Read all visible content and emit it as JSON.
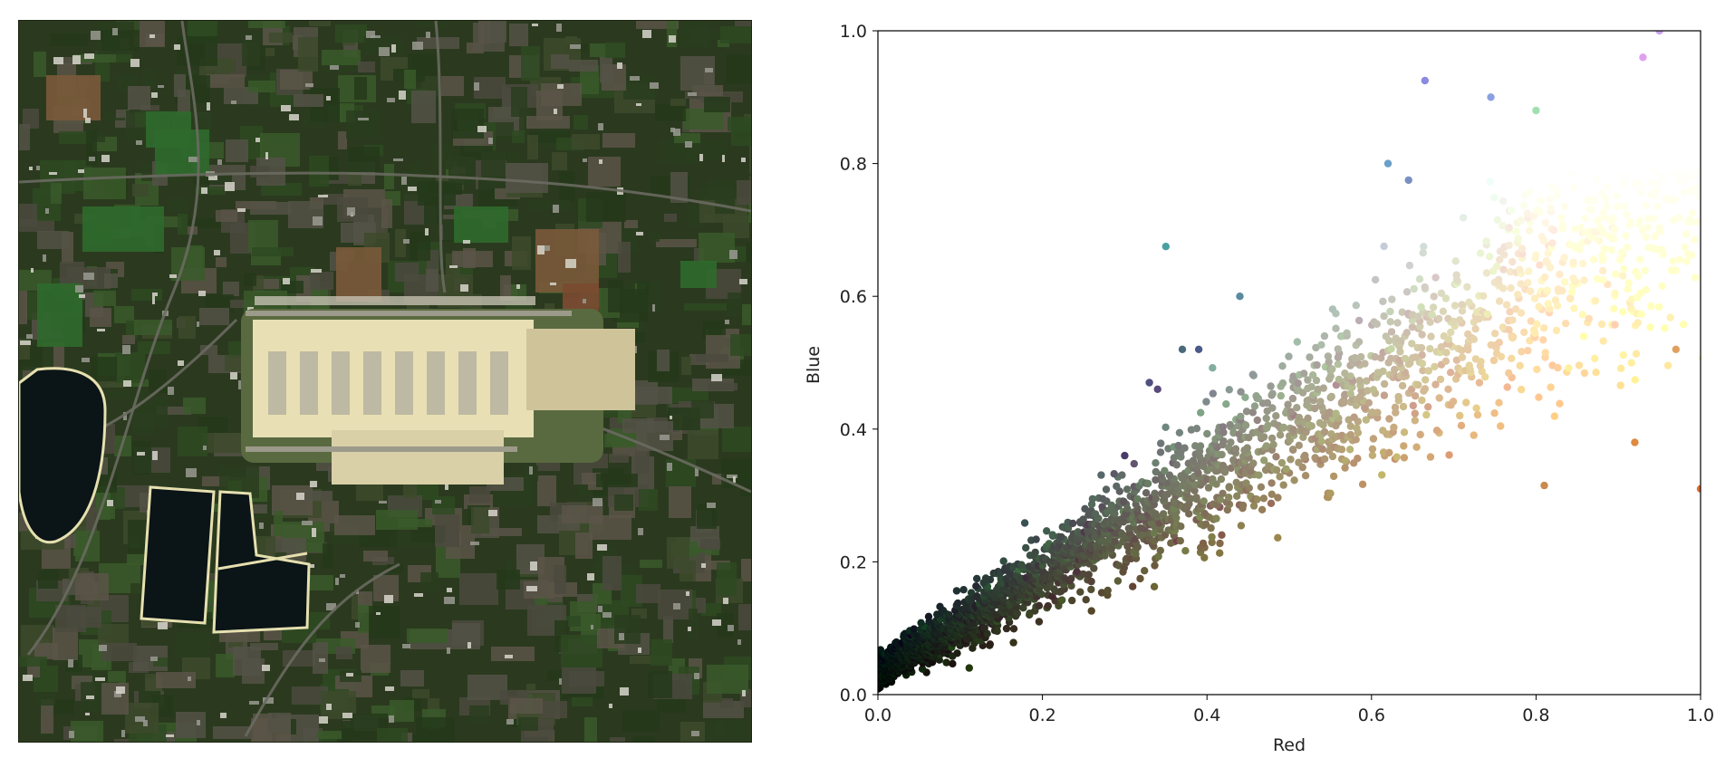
{
  "satellite_image": {
    "description_icon": "satellite-photo-airport",
    "colors": {
      "background": "#2b3a1f",
      "urban": "#4a4a40",
      "field_green": "#2f6a2c",
      "field_brown": "#7a5a3a",
      "runway_area": "#e8dfb4",
      "terminal": "#d9d0a8",
      "reservoir": "#0b1416",
      "reservoir_edge": "#e6e0b0"
    }
  },
  "chart_data": {
    "type": "scatter",
    "xlabel": "Red",
    "ylabel": "Blue",
    "xlim": [
      0.0,
      1.0
    ],
    "ylim": [
      0.0,
      1.0
    ],
    "x_ticks": [
      "0.0",
      "0.2",
      "0.4",
      "0.6",
      "0.8",
      "1.0"
    ],
    "y_ticks": [
      "0.0",
      "0.2",
      "0.4",
      "0.6",
      "0.8",
      "1.0"
    ],
    "grid": false,
    "marker_color_rule": "each point colored by its RGB pixel value",
    "outliers": [
      {
        "x": 0.35,
        "y": 0.675,
        "color": "#4aa0a0"
      },
      {
        "x": 0.44,
        "y": 0.6,
        "color": "#5a8aa0"
      },
      {
        "x": 0.37,
        "y": 0.52,
        "color": "#4a6a7a"
      },
      {
        "x": 0.39,
        "y": 0.52,
        "color": "#4a5a8a"
      },
      {
        "x": 0.33,
        "y": 0.47,
        "color": "#505080"
      },
      {
        "x": 0.34,
        "y": 0.46,
        "color": "#5a4a7a"
      },
      {
        "x": 0.3,
        "y": 0.36,
        "color": "#4a3a6a"
      },
      {
        "x": 0.62,
        "y": 0.8,
        "color": "#6aa0c8"
      },
      {
        "x": 0.645,
        "y": 0.775,
        "color": "#7a90c0"
      },
      {
        "x": 0.665,
        "y": 0.925,
        "color": "#8a8ae0"
      },
      {
        "x": 0.745,
        "y": 0.9,
        "color": "#8aa0e0"
      },
      {
        "x": 0.8,
        "y": 0.88,
        "color": "#a0e0b0"
      },
      {
        "x": 0.95,
        "y": 1.0,
        "color": "#c8a0f0"
      },
      {
        "x": 0.93,
        "y": 0.96,
        "color": "#e0a0f0"
      },
      {
        "x": 0.92,
        "y": 0.38,
        "color": "#e08a40"
      },
      {
        "x": 1.0,
        "y": 0.31,
        "color": "#e06a30"
      },
      {
        "x": 0.81,
        "y": 0.315,
        "color": "#c88a50"
      },
      {
        "x": 0.97,
        "y": 0.52,
        "color": "#e0a060"
      }
    ]
  }
}
